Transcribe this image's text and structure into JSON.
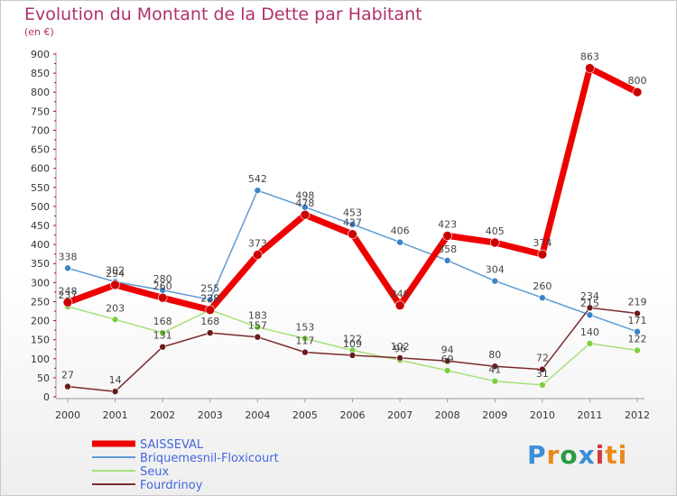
{
  "header": {
    "title": "Evolution du Montant de la Dette par Habitant",
    "subtitle": "(en €)"
  },
  "logo": {
    "text": "Proxiti",
    "letters": [
      "P",
      "r",
      "o",
      "x",
      "i",
      "ti"
    ]
  },
  "chart_data": {
    "type": "line",
    "x": [
      "2000",
      "2001",
      "2002",
      "2003",
      "2004",
      "2005",
      "2006",
      "2007",
      "2008",
      "2009",
      "2010",
      "2011",
      "2012"
    ],
    "ylim": [
      0,
      900
    ],
    "yticks": [
      "0",
      "50",
      "100",
      "150",
      "200",
      "250",
      "300",
      "350",
      "400",
      "450",
      "500",
      "550",
      "600",
      "650",
      "700",
      "750",
      "800",
      "850",
      "900"
    ],
    "grid": false,
    "legend_position": "bottom-left",
    "series": [
      {
        "name": "SAISSEVAL",
        "color": "#ee0000",
        "width": 7,
        "marker": "#cc0000",
        "values": [
          248,
          294,
          260,
          228,
          373,
          478,
          427,
          240,
          423,
          405,
          374,
          863,
          800
        ],
        "labels": [
          "248",
          "294",
          "260",
          "228",
          "373",
          "478",
          "427",
          "240",
          "423",
          "405",
          "374",
          "863",
          "800"
        ]
      },
      {
        "name": "Briquemesnil-Floxicourt",
        "color": "#5b9bd5",
        "width": 1.5,
        "marker": "#3b83c8",
        "values": [
          338,
          302,
          280,
          255,
          542,
          498,
          453,
          406,
          358,
          304,
          260,
          215,
          171
        ],
        "labels": [
          "338",
          "302",
          "280",
          "255",
          "542",
          "498",
          "453",
          "406",
          "358",
          "304",
          "260",
          "215",
          "171"
        ]
      },
      {
        "name": "Seux",
        "color": "#a6e07a",
        "width": 1.5,
        "marker": "#7ccf3f",
        "values": [
          237,
          203,
          168,
          228,
          183,
          153,
          122,
          96,
          69,
          41,
          31,
          140,
          122
        ],
        "labels": [
          "237",
          "203",
          "168",
          "228",
          "183",
          "153",
          "122",
          "96",
          "69",
          "41",
          "31",
          "140",
          "122"
        ]
      },
      {
        "name": "Fourdrinoy",
        "color": "#7a2b2b",
        "width": 1.5,
        "marker": "#6a1a1a",
        "values": [
          27,
          14,
          131,
          168,
          157,
          117,
          109,
          102,
          94,
          80,
          72,
          234,
          219
        ],
        "labels": [
          "27",
          "14",
          "131",
          "168",
          "157",
          "117",
          "109",
          "102",
          "94",
          "80",
          "72",
          "234",
          "219"
        ]
      }
    ]
  }
}
